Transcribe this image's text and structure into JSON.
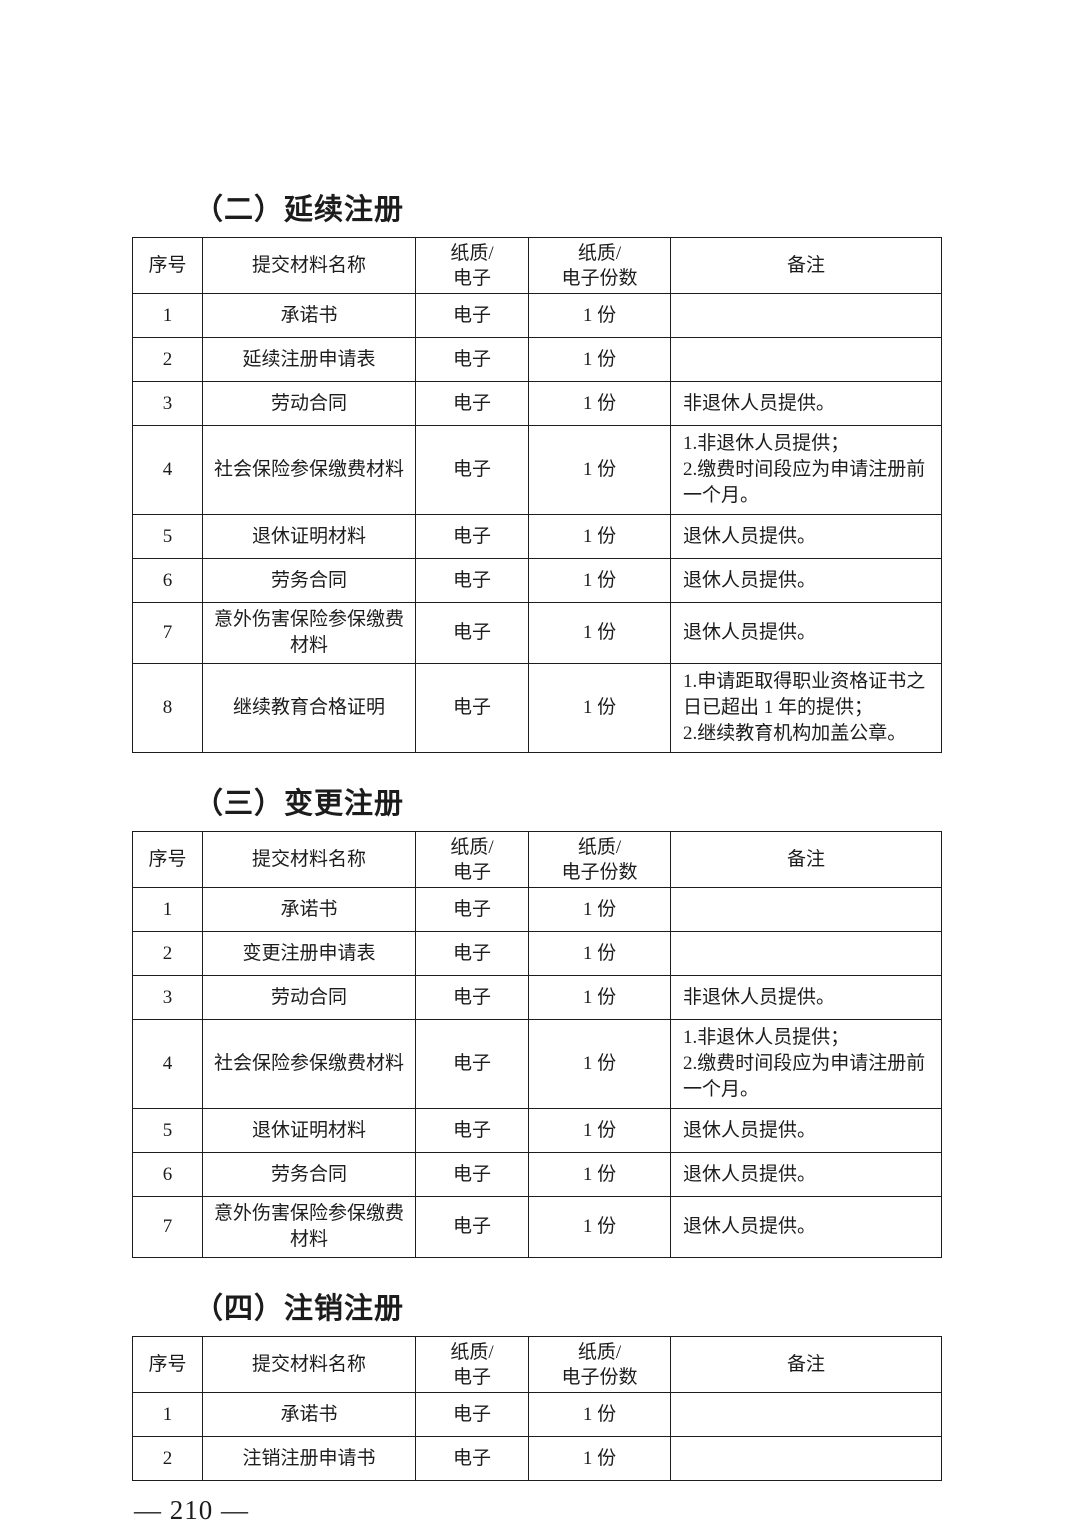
{
  "page": {
    "footer": "— 210 —"
  },
  "sections": [
    {
      "heading": "（二）延续注册",
      "table": {
        "headers": [
          "序号",
          "提交材料名称",
          "纸质/\n电子",
          "纸质/\n电子份数",
          "备注"
        ],
        "rows": [
          {
            "cells": [
              "1",
              "承诺书",
              "电子",
              "1 份",
              ""
            ]
          },
          {
            "cells": [
              "2",
              "延续注册申请表",
              "电子",
              "1 份",
              ""
            ]
          },
          {
            "cells": [
              "3",
              "劳动合同",
              "电子",
              "1 份",
              "非退休人员提供。"
            ]
          },
          {
            "cells": [
              "4",
              "社会保险参保缴费材料",
              "电子",
              "1 份",
              "1.非退休人员提供；\n2.缴费时间段应为申请注册前一个月。"
            ]
          },
          {
            "cells": [
              "5",
              "退休证明材料",
              "电子",
              "1 份",
              "退休人员提供。"
            ]
          },
          {
            "cells": [
              "6",
              "劳务合同",
              "电子",
              "1 份",
              "退休人员提供。"
            ]
          },
          {
            "cells": [
              "7",
              "意外伤害保险参保缴费材料",
              "电子",
              "1 份",
              "退休人员提供。"
            ]
          },
          {
            "cells": [
              "8",
              "继续教育合格证明",
              "电子",
              "1 份",
              "1.申请距取得职业资格证书之日已超出 1 年的提供；\n2.继续教育机构加盖公章。"
            ]
          }
        ]
      }
    },
    {
      "heading": "（三）变更注册",
      "table": {
        "headers": [
          "序号",
          "提交材料名称",
          "纸质/\n电子",
          "纸质/\n电子份数",
          "备注"
        ],
        "rows": [
          {
            "cells": [
              "1",
              "承诺书",
              "电子",
              "1 份",
              ""
            ]
          },
          {
            "cells": [
              "2",
              "变更注册申请表",
              "电子",
              "1 份",
              ""
            ]
          },
          {
            "cells": [
              "3",
              "劳动合同",
              "电子",
              "1 份",
              "非退休人员提供。"
            ]
          },
          {
            "cells": [
              "4",
              "社会保险参保缴费材料",
              "电子",
              "1 份",
              "1.非退休人员提供；\n2.缴费时间段应为申请注册前一个月。"
            ]
          },
          {
            "cells": [
              "5",
              "退休证明材料",
              "电子",
              "1 份",
              "退休人员提供。"
            ]
          },
          {
            "cells": [
              "6",
              "劳务合同",
              "电子",
              "1 份",
              "退休人员提供。"
            ]
          },
          {
            "cells": [
              "7",
              "意外伤害保险参保缴费材料",
              "电子",
              "1 份",
              "退休人员提供。"
            ]
          }
        ]
      }
    },
    {
      "heading": "（四）注销注册",
      "table": {
        "headers": [
          "序号",
          "提交材料名称",
          "纸质/\n电子",
          "纸质/\n电子份数",
          "备注"
        ],
        "rows": [
          {
            "cells": [
              "1",
              "承诺书",
              "电子",
              "1 份",
              ""
            ]
          },
          {
            "cells": [
              "2",
              "注销注册申请书",
              "电子",
              "1 份",
              ""
            ]
          }
        ]
      }
    }
  ]
}
